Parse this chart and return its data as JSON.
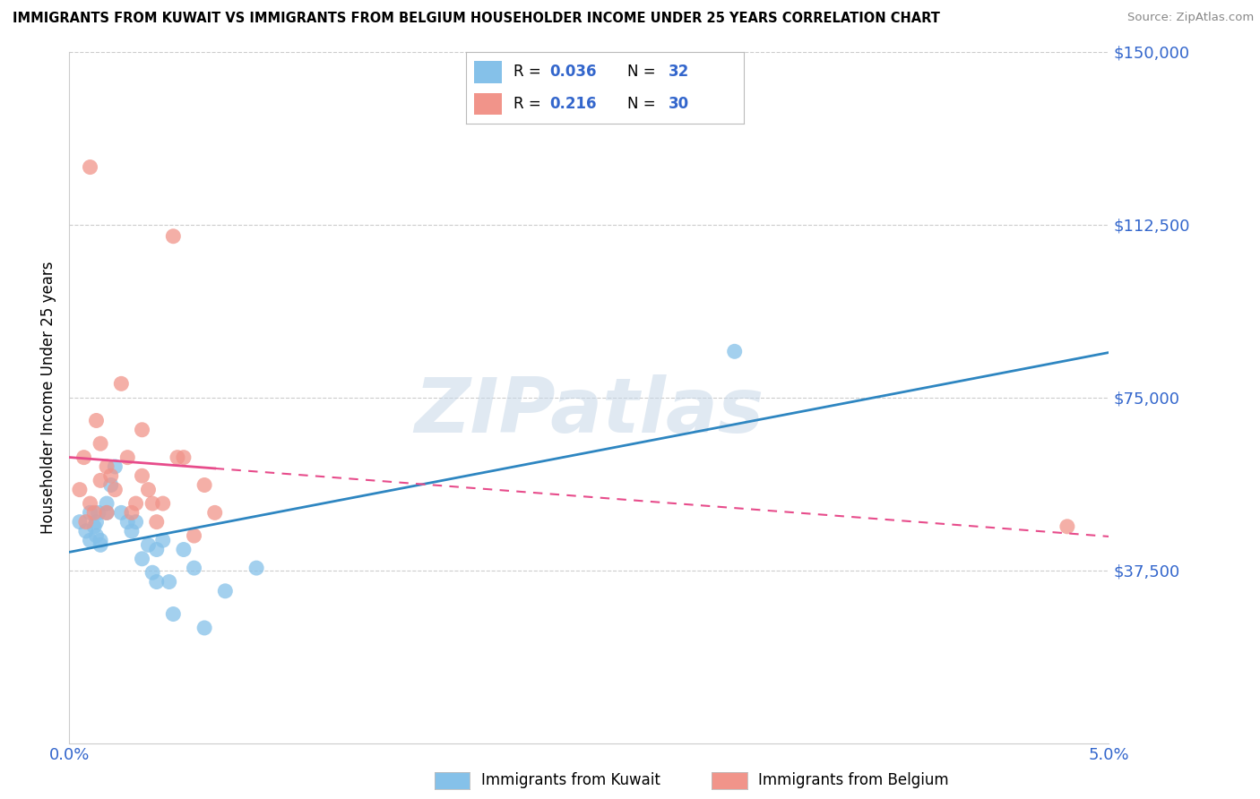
{
  "title": "IMMIGRANTS FROM KUWAIT VS IMMIGRANTS FROM BELGIUM HOUSEHOLDER INCOME UNDER 25 YEARS CORRELATION CHART",
  "source": "Source: ZipAtlas.com",
  "ylabel": "Householder Income Under 25 years",
  "xmin": 0.0,
  "xmax": 0.05,
  "ymin": 0,
  "ymax": 150000,
  "yticks": [
    0,
    37500,
    75000,
    112500,
    150000
  ],
  "ytick_labels": [
    "",
    "$37,500",
    "$75,000",
    "$112,500",
    "$150,000"
  ],
  "background_color": "#ffffff",
  "grid_color": "#cccccc",
  "watermark_text": "ZIPatlas",
  "color_kuwait": "#85c1e9",
  "color_belgium": "#f1948a",
  "color_line_kuwait": "#2e86c1",
  "color_line_belgium": "#e74c8b",
  "color_axis_text": "#3366cc",
  "kuwait_x": [
    0.0005,
    0.0008,
    0.001,
    0.001,
    0.0012,
    0.0013,
    0.0013,
    0.0014,
    0.0015,
    0.0015,
    0.0018,
    0.0018,
    0.002,
    0.0022,
    0.0025,
    0.0028,
    0.003,
    0.0032,
    0.0035,
    0.0038,
    0.004,
    0.0042,
    0.0042,
    0.0045,
    0.0048,
    0.005,
    0.0055,
    0.006,
    0.0065,
    0.0075,
    0.032,
    0.009
  ],
  "kuwait_y": [
    48000,
    46000,
    50000,
    44000,
    47000,
    45000,
    48000,
    50000,
    44000,
    43000,
    50000,
    52000,
    56000,
    60000,
    50000,
    48000,
    46000,
    48000,
    40000,
    43000,
    37000,
    42000,
    35000,
    44000,
    35000,
    28000,
    42000,
    38000,
    25000,
    33000,
    85000,
    38000
  ],
  "belgium_x": [
    0.0005,
    0.0007,
    0.0008,
    0.001,
    0.001,
    0.0012,
    0.0013,
    0.0015,
    0.0015,
    0.0018,
    0.0018,
    0.002,
    0.0022,
    0.0025,
    0.0028,
    0.003,
    0.0032,
    0.0035,
    0.0035,
    0.0038,
    0.004,
    0.0042,
    0.0045,
    0.005,
    0.0052,
    0.0055,
    0.006,
    0.0065,
    0.007,
    0.048
  ],
  "belgium_y": [
    55000,
    62000,
    48000,
    125000,
    52000,
    50000,
    70000,
    65000,
    57000,
    60000,
    50000,
    58000,
    55000,
    78000,
    62000,
    50000,
    52000,
    68000,
    58000,
    55000,
    52000,
    48000,
    52000,
    110000,
    62000,
    62000,
    45000,
    56000,
    50000,
    47000
  ],
  "line_solid_xmax": 0.007,
  "legend_items": [
    {
      "color": "#85c1e9",
      "r": "0.036",
      "n": "32"
    },
    {
      "color": "#f1948a",
      "r": "0.216",
      "n": "30"
    }
  ],
  "bottom_legend": [
    {
      "color": "#85c1e9",
      "label": "Immigrants from Kuwait"
    },
    {
      "color": "#f1948a",
      "label": "Immigrants from Belgium"
    }
  ]
}
